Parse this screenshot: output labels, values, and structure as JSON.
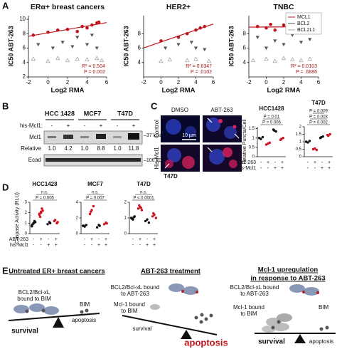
{
  "chart_data": [
    {
      "type": "scatter",
      "title": "ERα+ breast cancers",
      "x_label": "Log2 RMA",
      "y_label": "IC50 ABT-263",
      "xlim": [
        -2,
        6
      ],
      "xticks": [
        -2,
        0,
        2,
        4,
        6
      ],
      "ylim": [
        2,
        10.5
      ],
      "yticks": [
        2,
        4,
        6,
        8,
        10
      ],
      "series": [
        {
          "color": "#c0141c",
          "marker": "circle",
          "trendline": true,
          "x": [
            -1.5,
            0,
            1,
            2,
            3,
            3.5,
            4,
            4.5,
            5,
            5.2
          ],
          "values": [
            7.8,
            8.2,
            8.5,
            8.6,
            8.3,
            9.0,
            8.8,
            9.2,
            9.5,
            9.6
          ]
        },
        {
          "color": "#555555",
          "marker": "triangle-down",
          "x": [
            -1,
            0.5,
            1.5,
            2.5,
            3,
            4,
            4.5,
            5
          ],
          "values": [
            6.5,
            6.0,
            6.8,
            6.2,
            7.5,
            6.5,
            7.8,
            6.0
          ]
        },
        {
          "color": "#a8a8a8",
          "marker": "triangle-up",
          "x": [
            -1.5,
            0,
            1,
            2,
            3,
            4,
            5,
            5.5
          ],
          "values": [
            4.5,
            4.2,
            4.6,
            4.3,
            4.5,
            4.4,
            4.6,
            4.3
          ]
        }
      ],
      "annotations": [
        "R² = 0.504",
        "P = 0.002"
      ],
      "annotation_color": "#a01818"
    },
    {
      "type": "scatter",
      "title": "HER2+",
      "x_label": "Log2 RMA",
      "y_label": "IC50 ABT-263",
      "xlim": [
        -2,
        6
      ],
      "xticks": [
        -2,
        0,
        2,
        4,
        6
      ],
      "ylim": [
        2,
        10.5
      ],
      "yticks": [
        4,
        6,
        8
      ],
      "series": [
        {
          "color": "#c0141c",
          "marker": "circle",
          "trendline": true,
          "x": [
            0,
            2,
            3,
            4,
            4.5,
            5
          ],
          "values": [
            7.0,
            7.5,
            8.0,
            8.5,
            8.8,
            9.0
          ]
        },
        {
          "color": "#555555",
          "marker": "triangle-down",
          "x": [
            0.5,
            2,
            3.5,
            4,
            5
          ],
          "values": [
            6.0,
            6.5,
            6.8,
            6.0,
            5.8
          ]
        },
        {
          "color": "#a8a8a8",
          "marker": "triangle-up",
          "x": [
            0,
            1,
            3,
            4,
            5.5
          ],
          "values": [
            4.2,
            4.4,
            4.3,
            4.5,
            4.2
          ]
        }
      ],
      "annotations": [
        "R² = 0.6347",
        "P = .0102"
      ],
      "annotation_color": "#a01818"
    },
    {
      "type": "scatter",
      "title": "TNBC",
      "x_label": "Log2 RMA",
      "y_label": "IC50 ABT-263",
      "xlim": [
        -2,
        6
      ],
      "xticks": [
        -2,
        0,
        2,
        4,
        6
      ],
      "ylim": [
        2,
        10.5
      ],
      "yticks": [
        4,
        6,
        8
      ],
      "legend": "upper right",
      "series": [
        {
          "name": "MCL1",
          "color": "#c0141c",
          "marker": "circle",
          "trendline": true,
          "x": [
            -1,
            0,
            0.5,
            1,
            2,
            3,
            4,
            5,
            5.5
          ],
          "values": [
            9.0,
            8.8,
            9.3,
            8.5,
            9.2,
            8.7,
            9.0,
            8.9,
            9.1
          ]
        },
        {
          "name": "BCL2",
          "color": "#555555",
          "marker": "triangle-down",
          "x": [
            -1,
            0,
            1,
            2,
            3,
            4,
            5
          ],
          "values": [
            7.5,
            6.0,
            7.0,
            6.5,
            7.8,
            6.8,
            7.2
          ]
        },
        {
          "name": "BCL2L1",
          "color": "#a8a8a8",
          "marker": "triangle-up",
          "x": [
            -1.5,
            0,
            1,
            2,
            3,
            4,
            5
          ],
          "values": [
            4.3,
            4.5,
            4.2,
            4.6,
            4.4,
            4.3,
            4.5
          ]
        }
      ],
      "annotations": [
        "R² = 0.0103",
        "P = .6886"
      ],
      "annotation_color": "#a01818"
    },
    {
      "type": "strip",
      "title": "HCC1428",
      "y_label": "Relative Puncta/Cell",
      "xlim": [
        0.5,
        4.5
      ],
      "ylim": [
        0,
        1.6
      ],
      "yticks": [
        0,
        0.5,
        1,
        1.5
      ],
      "series": [
        {
          "color": "#111111",
          "x": [
            1,
            1,
            1,
            3,
            3,
            3
          ],
          "values": [
            1.0,
            0.95,
            1.05,
            1.4,
            1.35,
            1.45
          ]
        },
        {
          "color": "#d0101c",
          "x": [
            2,
            2,
            2,
            4,
            4,
            4
          ],
          "values": [
            0.65,
            0.7,
            0.75,
            0.95,
            1.0,
            0.9
          ]
        }
      ],
      "annotations": [
        "P = 0.006",
        "P = 0.01"
      ],
      "conditions": [
        [
          "-",
          "+",
          "-",
          "+"
        ],
        [
          "-",
          "-",
          "+",
          "+"
        ]
      ],
      "condition_labels": [
        "ABT-263",
        "his-Mcl1"
      ]
    },
    {
      "type": "strip",
      "title": "T47D",
      "xlim": [
        0.5,
        4.5
      ],
      "ylim": [
        0,
        2
      ],
      "yticks": [
        0,
        0.5,
        1,
        1.5,
        2
      ],
      "series": [
        {
          "color": "#111111",
          "x": [
            1,
            1,
            1,
            3,
            3,
            3
          ],
          "values": [
            1.0,
            0.95,
            1.05,
            1.3,
            1.35,
            1.25
          ]
        },
        {
          "color": "#d0101c",
          "x": [
            2,
            2,
            2,
            4,
            4,
            4
          ],
          "values": [
            0.5,
            0.55,
            0.45,
            1.4,
            1.5,
            1.45
          ]
        }
      ],
      "annotations": [
        "P = 0.002",
        "P = 0.003",
        "P = 0.009"
      ],
      "conditions": [
        [
          "-",
          "+",
          "-",
          "+"
        ],
        [
          "-",
          "-",
          "+",
          "+"
        ]
      ]
    },
    {
      "type": "strip",
      "title": "HCC1428",
      "y_label": "Caspase Activity (RLU)",
      "xlim": [
        0.5,
        4.5
      ],
      "ylim": [
        0,
        3
      ],
      "yticks": [
        0,
        1,
        2,
        3
      ],
      "series": [
        {
          "color": "#111111",
          "x": [
            1,
            1,
            1,
            1,
            1,
            1,
            1,
            3,
            3,
            3
          ],
          "values": [
            0.8,
            1.0,
            1.1,
            0.9,
            1.2,
            0.7,
            1.0,
            1.0,
            0.9,
            1.1
          ]
        },
        {
          "color": "#d0101c",
          "x": [
            2,
            2,
            2,
            2,
            2,
            2,
            2,
            4,
            4,
            4,
            4
          ],
          "values": [
            1.8,
            2.0,
            2.2,
            1.6,
            2.4,
            1.9,
            2.1,
            1.1,
            1.3,
            1.0,
            1.2
          ]
        }
      ],
      "annotations": [
        "P = 0.005",
        "n.s."
      ],
      "conditions": [
        [
          "-",
          "+",
          "-",
          "+"
        ],
        [
          "-",
          "-",
          "+",
          "+"
        ]
      ],
      "condition_labels": [
        "ABT-263",
        "his-Mcl1"
      ]
    },
    {
      "type": "strip",
      "title": "MCF7",
      "xlim": [
        0.5,
        4.5
      ],
      "ylim": [
        0,
        4
      ],
      "yticks": [
        0,
        2,
        4
      ],
      "series": [
        {
          "color": "#111111",
          "x": [
            1,
            1,
            1,
            1,
            3,
            3,
            3
          ],
          "values": [
            1.0,
            0.9,
            1.1,
            1.0,
            1.0,
            0.8,
            1.1
          ]
        },
        {
          "color": "#d0101c",
          "x": [
            2,
            2,
            2,
            2,
            4,
            4,
            4
          ],
          "values": [
            2.5,
            3.0,
            3.5,
            2.8,
            1.3,
            1.2,
            1.4
          ]
        }
      ],
      "annotations": [
        "P = 0.007",
        "n.s."
      ],
      "conditions": [
        [
          "-",
          "+",
          "-",
          "+"
        ],
        [
          "-",
          "-",
          "+",
          "+"
        ]
      ]
    },
    {
      "type": "strip",
      "title": "T47D",
      "xlim": [
        0.5,
        4.5
      ],
      "ylim": [
        0,
        2
      ],
      "yticks": [
        0,
        1,
        2
      ],
      "series": [
        {
          "color": "#111111",
          "x": [
            1,
            1,
            1,
            1,
            1,
            3,
            3,
            3
          ],
          "values": [
            1.0,
            0.9,
            1.1,
            0.95,
            1.05,
            0.8,
            0.9,
            0.7
          ]
        },
        {
          "color": "#d0101c",
          "x": [
            2,
            2,
            2,
            2,
            2,
            4,
            4,
            4,
            4
          ],
          "values": [
            1.6,
            1.7,
            1.5,
            1.8,
            1.65,
            1.1,
            1.2,
            1.0,
            1.3
          ]
        }
      ],
      "annotations": [
        "P < 0.0001",
        "n.s."
      ],
      "conditions": [
        [
          "-",
          "+",
          "-",
          "+"
        ],
        [
          "-",
          "-",
          "+",
          "+"
        ]
      ]
    }
  ],
  "figure": {
    "panel_labels": [
      "A",
      "B",
      "C",
      "D",
      "E"
    ],
    "blot": {
      "cell_lines": [
        "HCC 1428",
        "MCF7",
        "T47D"
      ],
      "treatment_label": "his-Mcl1:",
      "signs": [
        "-",
        "+",
        "-",
        "+",
        "-",
        "+"
      ],
      "mcl1_label": "Mcl1",
      "mcl1_marker": "–37 kDa",
      "relative_label": "Relative",
      "relative_values": [
        "1.0",
        "4.2",
        "1.0",
        "8.8",
        "1.0",
        "11.8"
      ],
      "ecad_label": "Ecad",
      "ecad_marker": "–100 kDa"
    },
    "micrographs": {
      "columns": [
        "DMSO",
        "ABT-263"
      ],
      "rows": [
        "Control",
        "His-Mcl1"
      ],
      "scale_bar": "10 µm",
      "cell_line": "T47D"
    },
    "model": {
      "untreated": {
        "title": "Untreated ER+ breast cancers",
        "complex": [
          "BCL2/Bcl-xL",
          "bound to BIM"
        ],
        "bim": "BIM",
        "survival": "survival",
        "apoptosis": "apoptosis"
      },
      "treatment": {
        "title": "ABT-263 treatment",
        "drug_complex": [
          "BCL2/Bcl-xL bound",
          "to ABT-263"
        ],
        "mcl1_complex": [
          "Mcl-1 bound",
          "to BIM"
        ],
        "survival": "survival",
        "apoptosis": "apoptosis"
      },
      "upregulation": {
        "title": [
          "Mcl-1 upregulation",
          "in response to ABT-263"
        ],
        "drug_complex": [
          "BCL2/Bcl-xL bound",
          "to ABT-263"
        ],
        "mcl1_complex": [
          "Mcl-1  bound",
          "to BIM"
        ],
        "bim": "BIM",
        "survival": "survival",
        "apoptosis": "apoptosis"
      }
    }
  }
}
